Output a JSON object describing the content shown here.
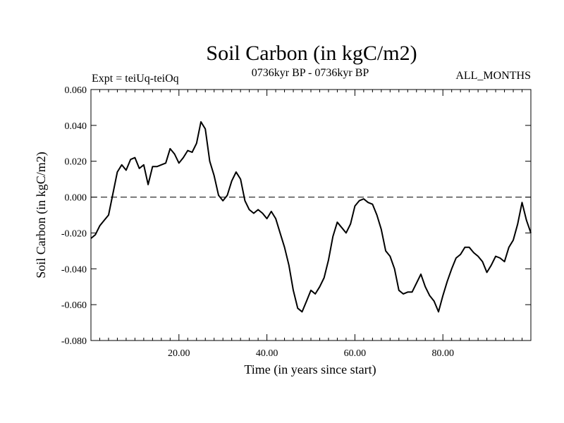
{
  "chart_data": {
    "type": "line",
    "title": "Soil Carbon (in kgC/m2)",
    "subtitle_left": "Expt = teiUq-teiOq",
    "subtitle_center": "0736kyr BP - 0736kyr BP",
    "subtitle_right": "ALL_MONTHS",
    "xlabel": "Time (in years since start)",
    "ylabel": "Soil Carbon (in kgC/m2)",
    "xlim": [
      0,
      100
    ],
    "ylim": [
      -0.08,
      0.06
    ],
    "x_ticks": [
      20,
      40,
      60,
      80
    ],
    "x_tick_labels": [
      "20.00",
      "40.00",
      "60.00",
      "80.00"
    ],
    "y_ticks": [
      0.06,
      0.04,
      0.02,
      0.0,
      -0.02,
      -0.04,
      -0.06,
      -0.08
    ],
    "y_tick_labels": [
      "0.060",
      "0.040",
      "0.020",
      "0.000",
      "-0.020",
      "-0.040",
      "-0.060",
      "-0.080"
    ],
    "reference_line": {
      "y": 0.0,
      "style": "dashed"
    },
    "grid": false,
    "line_color": "#000000",
    "series": [
      {
        "x": [
          0,
          1,
          2,
          3,
          4,
          5,
          6,
          7,
          8,
          9,
          10,
          11,
          12,
          13,
          14,
          15,
          16,
          17,
          18,
          19,
          20,
          21,
          22,
          23,
          24,
          25,
          26,
          27,
          28,
          29,
          30,
          31,
          32,
          33,
          34,
          35,
          36,
          37,
          38,
          39,
          40,
          41,
          42,
          43,
          44,
          45,
          46,
          47,
          48,
          49,
          50,
          51,
          52,
          53,
          54,
          55,
          56,
          57,
          58,
          59,
          60,
          61,
          62,
          63,
          64,
          65,
          66,
          67,
          68,
          69,
          70,
          71,
          72,
          73,
          74,
          75,
          76,
          77,
          78,
          79,
          80,
          81,
          82,
          83,
          84,
          85,
          86,
          87,
          88,
          89,
          90,
          91,
          92,
          93,
          94,
          95,
          96,
          97,
          98,
          99,
          100
        ],
        "values": [
          -0.023,
          -0.021,
          -0.016,
          -0.013,
          -0.01,
          0.002,
          0.014,
          0.018,
          0.015,
          0.021,
          0.022,
          0.016,
          0.018,
          0.007,
          0.017,
          0.017,
          0.018,
          0.019,
          0.027,
          0.024,
          0.019,
          0.022,
          0.026,
          0.025,
          0.03,
          0.042,
          0.038,
          0.02,
          0.012,
          0.001,
          -0.002,
          0.001,
          0.009,
          0.014,
          0.01,
          -0.002,
          -0.007,
          -0.009,
          -0.007,
          -0.009,
          -0.012,
          -0.008,
          -0.012,
          -0.02,
          -0.028,
          -0.038,
          -0.052,
          -0.062,
          -0.064,
          -0.058,
          -0.052,
          -0.054,
          -0.05,
          -0.045,
          -0.035,
          -0.022,
          -0.014,
          -0.017,
          -0.02,
          -0.015,
          -0.005,
          -0.002,
          -0.001,
          -0.003,
          -0.004,
          -0.01,
          -0.018,
          -0.03,
          -0.033,
          -0.04,
          -0.052,
          -0.054,
          -0.053,
          -0.053,
          -0.048,
          -0.043,
          -0.05,
          -0.055,
          -0.058,
          -0.064,
          -0.055,
          -0.047,
          -0.04,
          -0.034,
          -0.032,
          -0.028,
          -0.028,
          -0.031,
          -0.033,
          -0.036,
          -0.042,
          -0.038,
          -0.033,
          -0.034,
          -0.036,
          -0.028,
          -0.024,
          -0.015,
          -0.003,
          -0.013,
          -0.02
        ]
      }
    ]
  }
}
